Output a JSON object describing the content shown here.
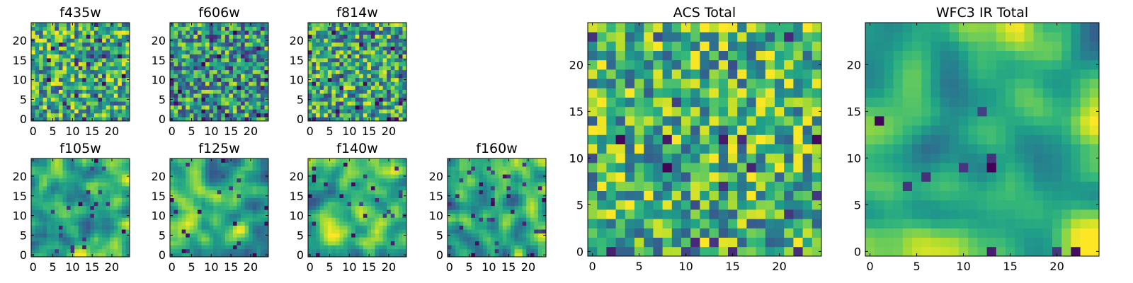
{
  "chart_data": [
    {
      "type": "heatmap",
      "title": "f435w",
      "colormap": "viridis",
      "xlim": [
        0,
        24
      ],
      "ylim": [
        0,
        24
      ],
      "x_ticks": [
        "0",
        "5",
        "10",
        "15",
        "20"
      ],
      "y_ticks": [
        "0",
        "5",
        "10",
        "15",
        "20"
      ],
      "seed": 11,
      "smooth": 0,
      "bias": 0.62,
      "dark_fraction": 0.05
    },
    {
      "type": "heatmap",
      "title": "f606w",
      "colormap": "viridis",
      "xlim": [
        0,
        24
      ],
      "ylim": [
        0,
        24
      ],
      "x_ticks": [
        "0",
        "5",
        "10",
        "15",
        "20"
      ],
      "y_ticks": [
        "0",
        "5",
        "10",
        "15",
        "20"
      ],
      "seed": 23,
      "smooth": 0,
      "bias": 0.55,
      "dark_fraction": 0.09
    },
    {
      "type": "heatmap",
      "title": "f814w",
      "colormap": "viridis",
      "xlim": [
        0,
        24
      ],
      "ylim": [
        0,
        24
      ],
      "x_ticks": [
        "0",
        "5",
        "10",
        "15",
        "20"
      ],
      "y_ticks": [
        "0",
        "5",
        "10",
        "15",
        "20"
      ],
      "seed": 37,
      "smooth": 0,
      "bias": 0.6,
      "dark_fraction": 0.06
    },
    {
      "type": "heatmap",
      "title": "f105w",
      "colormap": "viridis",
      "xlim": [
        0,
        24
      ],
      "ylim": [
        0,
        24
      ],
      "x_ticks": [
        "0",
        "5",
        "10",
        "15",
        "20"
      ],
      "y_ticks": [
        "0",
        "5",
        "10",
        "15",
        "20"
      ],
      "seed": 41,
      "smooth": 2,
      "bias": 0.65,
      "dark_fraction": 0.03
    },
    {
      "type": "heatmap",
      "title": "f125w",
      "colormap": "viridis",
      "xlim": [
        0,
        24
      ],
      "ylim": [
        0,
        24
      ],
      "x_ticks": [
        "0",
        "5",
        "10",
        "15",
        "20"
      ],
      "y_ticks": [
        "0",
        "5",
        "10",
        "15",
        "20"
      ],
      "seed": 53,
      "smooth": 2,
      "bias": 0.62,
      "dark_fraction": 0.04
    },
    {
      "type": "heatmap",
      "title": "f140w",
      "colormap": "viridis",
      "xlim": [
        0,
        24
      ],
      "ylim": [
        0,
        24
      ],
      "x_ticks": [
        "0",
        "5",
        "10",
        "15",
        "20"
      ],
      "y_ticks": [
        "0",
        "5",
        "10",
        "15",
        "20"
      ],
      "seed": 67,
      "smooth": 2,
      "bias": 0.64,
      "dark_fraction": 0.04
    },
    {
      "type": "heatmap",
      "title": "f160w",
      "colormap": "viridis",
      "xlim": [
        0,
        24
      ],
      "ylim": [
        0,
        24
      ],
      "x_ticks": [
        "0",
        "5",
        "10",
        "15",
        "20"
      ],
      "y_ticks": [
        "0",
        "5",
        "10",
        "15",
        "20"
      ],
      "seed": 79,
      "smooth": 2,
      "bias": 0.6,
      "dark_fraction": 0.05
    },
    {
      "type": "heatmap",
      "title": "ACS Total",
      "colormap": "viridis",
      "xlim": [
        0,
        24
      ],
      "ylim": [
        0,
        24
      ],
      "x_ticks": [
        "0",
        "5",
        "10",
        "15",
        "20"
      ],
      "y_ticks": [
        "0",
        "5",
        "10",
        "15",
        "20"
      ],
      "seed": 91,
      "smooth": 0,
      "bias": 0.66,
      "dark_fraction": 0.04
    },
    {
      "type": "heatmap",
      "title": "WFC3 IR Total",
      "colormap": "viridis",
      "xlim": [
        0,
        24
      ],
      "ylim": [
        0,
        24
      ],
      "x_ticks": [
        "0",
        "5",
        "10",
        "15",
        "20"
      ],
      "y_ticks": [
        "0",
        "5",
        "10",
        "15",
        "20"
      ],
      "seed": 103,
      "smooth": 3,
      "bias": 0.68,
      "dark_fraction": 0.03
    }
  ]
}
